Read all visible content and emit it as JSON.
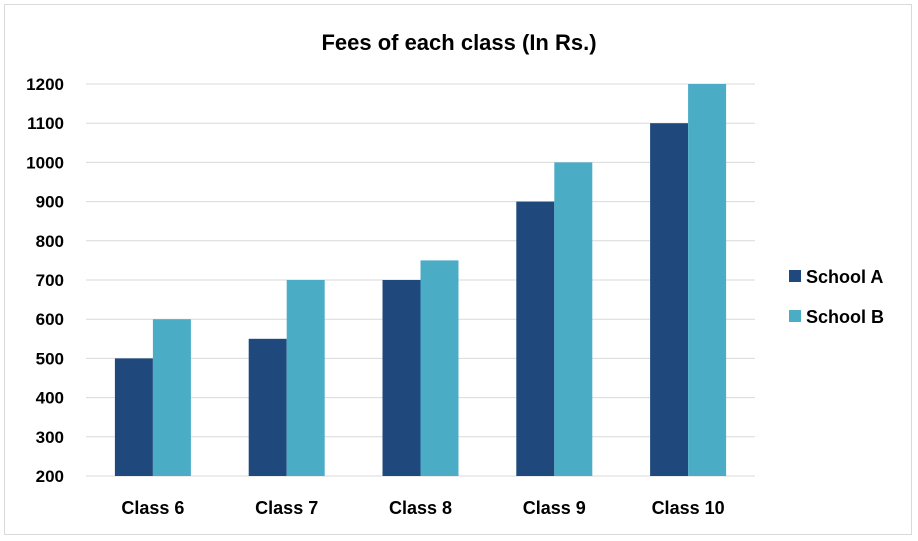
{
  "chart_data": {
    "type": "bar",
    "title": "Fees of each class (In Rs.)",
    "xlabel": "",
    "ylabel": "",
    "categories": [
      "Class 6",
      "Class 7",
      "Class 8",
      "Class 9",
      "Class 10"
    ],
    "series": [
      {
        "name": "School A",
        "values": [
          500,
          550,
          700,
          900,
          1100
        ],
        "color": "#1f497d"
      },
      {
        "name": "School B",
        "values": [
          600,
          700,
          750,
          1000,
          1200
        ],
        "color": "#4bacc6"
      }
    ],
    "ylim": [
      200,
      1200
    ],
    "yticks": [
      200,
      300,
      400,
      500,
      600,
      700,
      800,
      900,
      1000,
      1100,
      1200
    ],
    "grid": true,
    "legend_position": "right"
  }
}
